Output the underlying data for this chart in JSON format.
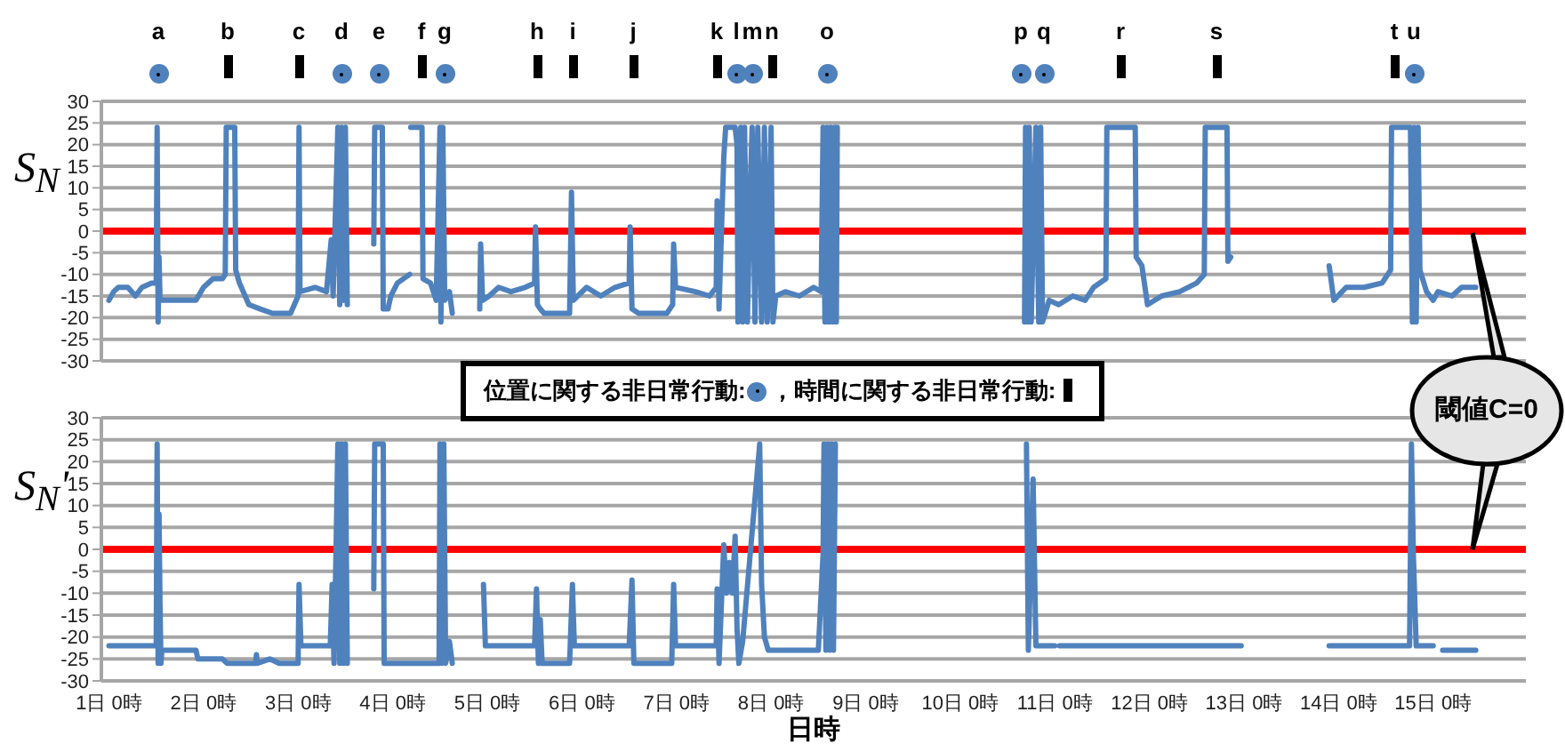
{
  "chart_data": [
    {
      "type": "line",
      "ylabel": "S$_{N}$",
      "xlim": [
        "--01-31T22:05",
        "--02-15T23:31"
      ],
      "ylim": [
        -30,
        30
      ],
      "yticks": [
        -30,
        -25,
        -20,
        -15,
        -10,
        -5,
        0,
        5,
        10,
        15,
        20,
        25,
        30
      ],
      "grid": "y",
      "tick_labels": "y",
      "marker": "none",
      "line_style": "solid",
      "ref_lines": [
        {
          "axis": "y",
          "value": 0,
          "color": "#ff0000"
        }
      ],
      "annotations": [
        "a",
        "b",
        "c",
        "d",
        "e",
        "f",
        "g",
        "h",
        "i",
        "j",
        "k",
        "l",
        "m",
        "n",
        "o",
        "p",
        "q",
        "r",
        "s",
        "t",
        "u",
        "位置に関する非日常行動:",
        "，時間に関する非日常行動:",
        "閾値C=0"
      ],
      "series": [
        {
          "color": "#4f81bd",
          "x": [
            "--02-01T00:00",
            "--02-01T01:12",
            "--02-01T02:24",
            "--02-01T04:48",
            "--02-01T06:43",
            "--02-01T08:24",
            "--02-01T10:48",
            "--02-01T12:00",
            "--02-01T12:14",
            "--02-01T12:29",
            "--02-01T12:43",
            "--02-01T12:58",
            "--02-01T16:48",
            "--02-01T22:05",
            "--02-02T00:00",
            "--02-02T02:24",
            "--02-02T04:48",
            "--02-02T05:31",
            "--02-02T05:46",
            "--02-02T07:55",
            "--02-02T08:10",
            "--02-02T09:07",
            "--02-02T11:31",
            "--02-02T14:24",
            "--02-02T17:31",
            "--02-02T22:05",
            "--02-03T00:00",
            "--02-03T00:14",
            "--02-03T00:29",
            "--02-03T04:19",
            "--02-03T07:12",
            "--02-03T08:24",
            "--02-03T08:53",
            "--02-03T10:05",
            "--02-03T10:34",
            "--02-03T11:02",
            "--02-03T11:31",
            "--02-03T12:00",
            "--02-03T12:29",
            "--02-03T14:24",
            "--02-03T19:12",
            "--02-03T19:26",
            "--02-03T21:22",
            "--02-03T21:36",
            "--02-03T22:48",
            "--02-03T23:31",
            "--02-04T01:12",
            "--02-04T04:19",
            "--02-04T04:26",
            "--02-04T04:34",
            "--02-04T07:26",
            "--02-04T07:41",
            "--02-04T09:36",
            "--02-04T11:02",
            "--02-04T12:00",
            "--02-04T12:14",
            "--02-04T12:43",
            "--02-04T13:12",
            "--02-04T14:24",
            "--02-04T15:07",
            "--02-04T19:12",
            "--02-04T22:05",
            "--02-04T22:19",
            "--02-04T22:48",
            "--02-05T00:29",
            "--02-05T02:53",
            "--02-05T06:00",
            "--02-05T09:36",
            "--02-05T12:00",
            "--02-05T12:14",
            "--02-05T12:43",
            "--02-05T13:26",
            "--02-05T14:24",
            "--02-05T20:53",
            "--02-05T21:22",
            "--02-05T21:50",
            "--02-06T01:12",
            "--02-06T04:48",
            "--02-06T08:24",
            "--02-06T12:00",
            "--02-06T12:14",
            "--02-06T12:43",
            "--02-06T14:24",
            "--02-06T21:36",
            "--02-06T23:02",
            "--02-06T23:17",
            "--02-06T23:46",
            "--02-07T04:48",
            "--02-07T08:24",
            "--02-07T10:05",
            "--02-07T10:19",
            "--02-07T10:48",
            "--02-07T12:00",
            "--02-07T12:29",
            "--02-07T14:53",
            "--02-07T15:22",
            "--02-07T15:36",
            "--02-07T16:19",
            "--02-07T16:48",
            "--02-07T17:17",
            "--02-07T18:00",
            "--02-07T18:43",
            "--02-07T19:12",
            "--02-07T19:55",
            "--02-07T20:38",
            "--02-07T21:36",
            "--02-07T22:19",
            "--02-07T23:02",
            "--02-08T00:00",
            "--02-08T00:29",
            "--02-08T01:12",
            "--02-08T03:36",
            "--02-08T07:12",
            "--02-08T10:48",
            "--02-08T12:43",
            "--02-08T13:12",
            "--02-08T13:41",
            "--02-08T14:10",
            "--02-08T14:38",
            "--02-08T15:07",
            "--02-08T15:36",
            "--02-08T16:05",
            "--02-08T16:34",
            "--02-08T16:48",
            "--02-09T00:00",
            "--02-10T16:19",
            "--02-10T16:34",
            "--02-10T17:02",
            "--02-10T17:31",
            "--02-10T18:00",
            "--02-10T19:12",
            "--02-10T19:55",
            "--02-10T20:24",
            "--02-10T20:53",
            "--02-10T22:34",
            "--02-11T00:58",
            "--02-11T04:34",
            "--02-11T07:41",
            "--02-11T09:50",
            "--02-11T12:58",
            "--02-11T13:12",
            "--02-11T20:24",
            "--02-11T20:38",
            "--02-11T22:05",
            "--02-11T23:31",
            "--02-12T03:07",
            "--02-12T07:41",
            "--02-12T12:00",
            "--02-12T13:55",
            "--02-12T14:10",
            "--02-12T19:41",
            "--02-12T19:55",
            "--02-12T20:38",
            "--02-13T09:36",
            "--02-13T21:36",
            "--02-13T22:48",
            "--02-14T01:55",
            "--02-14T06:29",
            "--02-14T11:02",
            "--02-14T13:12",
            "--02-14T13:26",
            "--02-14T16:48",
            "--02-14T18:14",
            "--02-14T18:43",
            "--02-14T19:12",
            "--02-14T19:41",
            "--02-14T20:10",
            "--02-14T20:38",
            "--02-14T22:19",
            "--02-15T00:00",
            "--02-15T01:12",
            "--02-15T04:48",
            "--02-15T07:12",
            "--02-15T10:48"
          ],
          "values": [
            -16,
            -14,
            -13,
            -13,
            -15,
            -13,
            -12,
            -12,
            24,
            -21,
            -6,
            -16,
            -16,
            -16,
            -13,
            -11,
            -11,
            -10,
            24,
            24,
            -9,
            -12,
            -17,
            -18,
            -19,
            -19,
            -15,
            24,
            -14,
            -13,
            -14,
            -2,
            -15,
            24,
            -17,
            24,
            -16,
            24,
            -17,
            null,
            -3,
            24,
            24,
            -18,
            -18,
            -15,
            -12,
            -10,
            null,
            24,
            24,
            -11,
            -12,
            -16,
            24,
            -21,
            24,
            -16,
            -14,
            -19,
            null,
            -18,
            -3,
            -16,
            -15,
            -13,
            -14,
            -13,
            -12,
            1,
            -17,
            -18,
            -19,
            -19,
            9,
            -16,
            -13,
            -15,
            -13,
            -12,
            1,
            -18,
            -19,
            -19,
            -17,
            -3,
            -13,
            -14,
            -15,
            -13,
            7,
            -18,
            17,
            24,
            24,
            20,
            -21,
            24,
            -21,
            24,
            -21,
            10,
            24,
            -21,
            24,
            -21,
            24,
            -21,
            24,
            -21,
            -15,
            -14,
            -15,
            -13,
            -14,
            24,
            -21,
            24,
            -21,
            24,
            -21,
            24,
            -21,
            24,
            null,
            -21,
            24,
            -21,
            24,
            -21,
            24,
            -21,
            24,
            -21,
            -16,
            -17,
            -15,
            -16,
            -13,
            -11,
            24,
            24,
            -6,
            -8,
            -17,
            -15,
            -14,
            -12,
            -10,
            24,
            24,
            -7,
            -6,
            null,
            -8,
            -16,
            -13,
            -13,
            -12,
            -9,
            24,
            24,
            24,
            -21,
            24,
            -21,
            24,
            -9,
            -14,
            -16,
            -14,
            -15,
            -13,
            -13
          ]
        }
      ]
    },
    {
      "type": "line",
      "ylabel": "S$_{N}$'",
      "xlabel": "日時",
      "xlim": [
        "--01-31T22:05",
        "--02-15T23:31"
      ],
      "ylim": [
        -30,
        30
      ],
      "yticks": [
        -30,
        -25,
        -20,
        -15,
        -10,
        -5,
        0,
        5,
        10,
        15,
        20,
        25,
        30
      ],
      "xticks": [
        {
          "value": "--02-01T00:00",
          "label": "1日 0時"
        },
        {
          "value": "--02-02T00:00",
          "label": "2日 0時"
        },
        {
          "value": "--02-03T00:00",
          "label": "3日 0時"
        },
        {
          "value": "--02-04T00:00",
          "label": "4日 0時"
        },
        {
          "value": "--02-05T00:00",
          "label": "5日 0時"
        },
        {
          "value": "--02-06T00:00",
          "label": "6日 0時"
        },
        {
          "value": "--02-07T00:00",
          "label": "7日 0時"
        },
        {
          "value": "--02-08T00:00",
          "label": "8日 0時"
        },
        {
          "value": "--02-09T00:00",
          "label": "9日 0時"
        },
        {
          "value": "--02-10T00:00",
          "label": "10日 0時"
        },
        {
          "value": "--02-11T00:00",
          "label": "11日 0時"
        },
        {
          "value": "--02-12T00:00",
          "label": "12日 0時"
        },
        {
          "value": "--02-13T00:00",
          "label": "13日 0時"
        },
        {
          "value": "--02-14T00:00",
          "label": "14日 0時"
        },
        {
          "value": "--02-15T00:00",
          "label": "15日 0時"
        }
      ],
      "grid": "y",
      "marker": "none",
      "line_style": "solid",
      "ref_lines": [
        {
          "axis": "y",
          "value": 0,
          "color": "#ff0000"
        }
      ],
      "series": [
        {
          "color": "#4f81bd",
          "x": [
            "--02-01T00:00",
            "--02-01T12:00",
            "--02-01T12:14",
            "--02-01T12:29",
            "--02-01T12:43",
            "--02-01T12:58",
            "--02-01T13:12",
            "--02-01T13:26",
            "--02-01T22:05",
            "--02-01T22:34",
            "--02-02T04:48",
            "--02-02T06:00",
            "--02-02T13:12",
            "--02-02T13:26",
            "--02-02T13:41",
            "--02-02T16:48",
            "--02-02T19:12",
            "--02-03T00:00",
            "--02-03T00:14",
            "--02-03T00:43",
            "--02-03T08:10",
            "--02-03T08:38",
            "--02-03T09:07",
            "--02-03T10:05",
            "--02-03T10:34",
            "--02-03T11:02",
            "--02-03T11:31",
            "--02-03T12:00",
            "--02-03T12:29",
            "--02-03T14:24",
            "--02-03T19:12",
            "--02-03T19:26",
            "--02-03T21:36",
            "--02-03T21:50",
            "--02-04T11:46",
            "--02-04T12:00",
            "--02-04T12:29",
            "--02-04T12:58",
            "--02-04T13:26",
            "--02-04T14:24",
            "--02-04T15:07",
            "--02-04T19:12",
            "--02-04T23:02",
            "--02-04T23:31",
            "--02-05T12:00",
            "--02-05T12:29",
            "--02-05T12:58",
            "--02-05T13:26",
            "--02-05T13:55",
            "--02-05T20:53",
            "--02-05T21:36",
            "--02-05T22:05",
            "--02-06T12:00",
            "--02-06T12:43",
            "--02-06T13:12",
            "--02-06T22:48",
            "--02-06T23:17",
            "--02-06T23:46",
            "--02-07T10:05",
            "--02-07T10:19",
            "--02-07T10:48",
            "--02-07T12:00",
            "--02-07T12:43",
            "--02-07T13:26",
            "--02-07T14:10",
            "--02-07T14:53",
            "--02-07T15:22",
            "--02-07T15:50",
            "--02-07T16:48",
            "--02-07T21:07",
            "--02-07T21:36",
            "--02-07T22:19",
            "--02-07T23:17",
            "--02-08T12:00",
            "--02-08T13:12",
            "--02-08T13:26",
            "--02-08T13:55",
            "--02-08T14:24",
            "--02-08T14:53",
            "--02-08T15:22",
            "--02-08T15:50",
            "--02-08T16:19",
            "--02-09T00:00",
            "--02-10T16:48",
            "--02-10T17:17",
            "--02-10T18:29",
            "--02-10T19:12",
            "--02-11T00:00",
            "--02-11T00:29",
            "--02-11T01:12",
            "--02-12T23:17",
            "--02-13T09:36",
            "--02-13T21:36",
            "--02-14T18:00",
            "--02-14T18:29",
            "--02-14T18:58",
            "--02-14T19:41",
            "--02-15T00:00",
            "--02-15T01:12",
            "--02-15T02:24",
            "--02-15T10:48"
          ],
          "values": [
            -22,
            -22,
            24,
            -26,
            8,
            -13,
            -26,
            -23,
            -23,
            -25,
            -25,
            -26,
            -26,
            -24,
            -26,
            -25,
            -26,
            -26,
            -8,
            -22,
            -22,
            -8,
            -26,
            24,
            -26,
            24,
            -26,
            24,
            -26,
            null,
            -9,
            24,
            24,
            -26,
            -26,
            24,
            -26,
            24,
            -26,
            -21,
            -26,
            null,
            -8,
            -22,
            -22,
            -9,
            -26,
            -16,
            -26,
            -26,
            -8,
            -22,
            -22,
            -7,
            -26,
            -26,
            -8,
            -22,
            -22,
            -9,
            -26,
            1,
            -10,
            -3,
            -10,
            3,
            -18,
            -26,
            -21,
            24,
            -8,
            -20,
            -23,
            -23,
            -1,
            24,
            -23,
            24,
            -23,
            24,
            -23,
            24,
            null,
            24,
            -23,
            16,
            -22,
            -22,
            null,
            -22,
            -22,
            null,
            -22,
            -22,
            24,
            -1,
            -22,
            -22,
            null,
            -23,
            -23
          ]
        }
      ]
    }
  ]
}
